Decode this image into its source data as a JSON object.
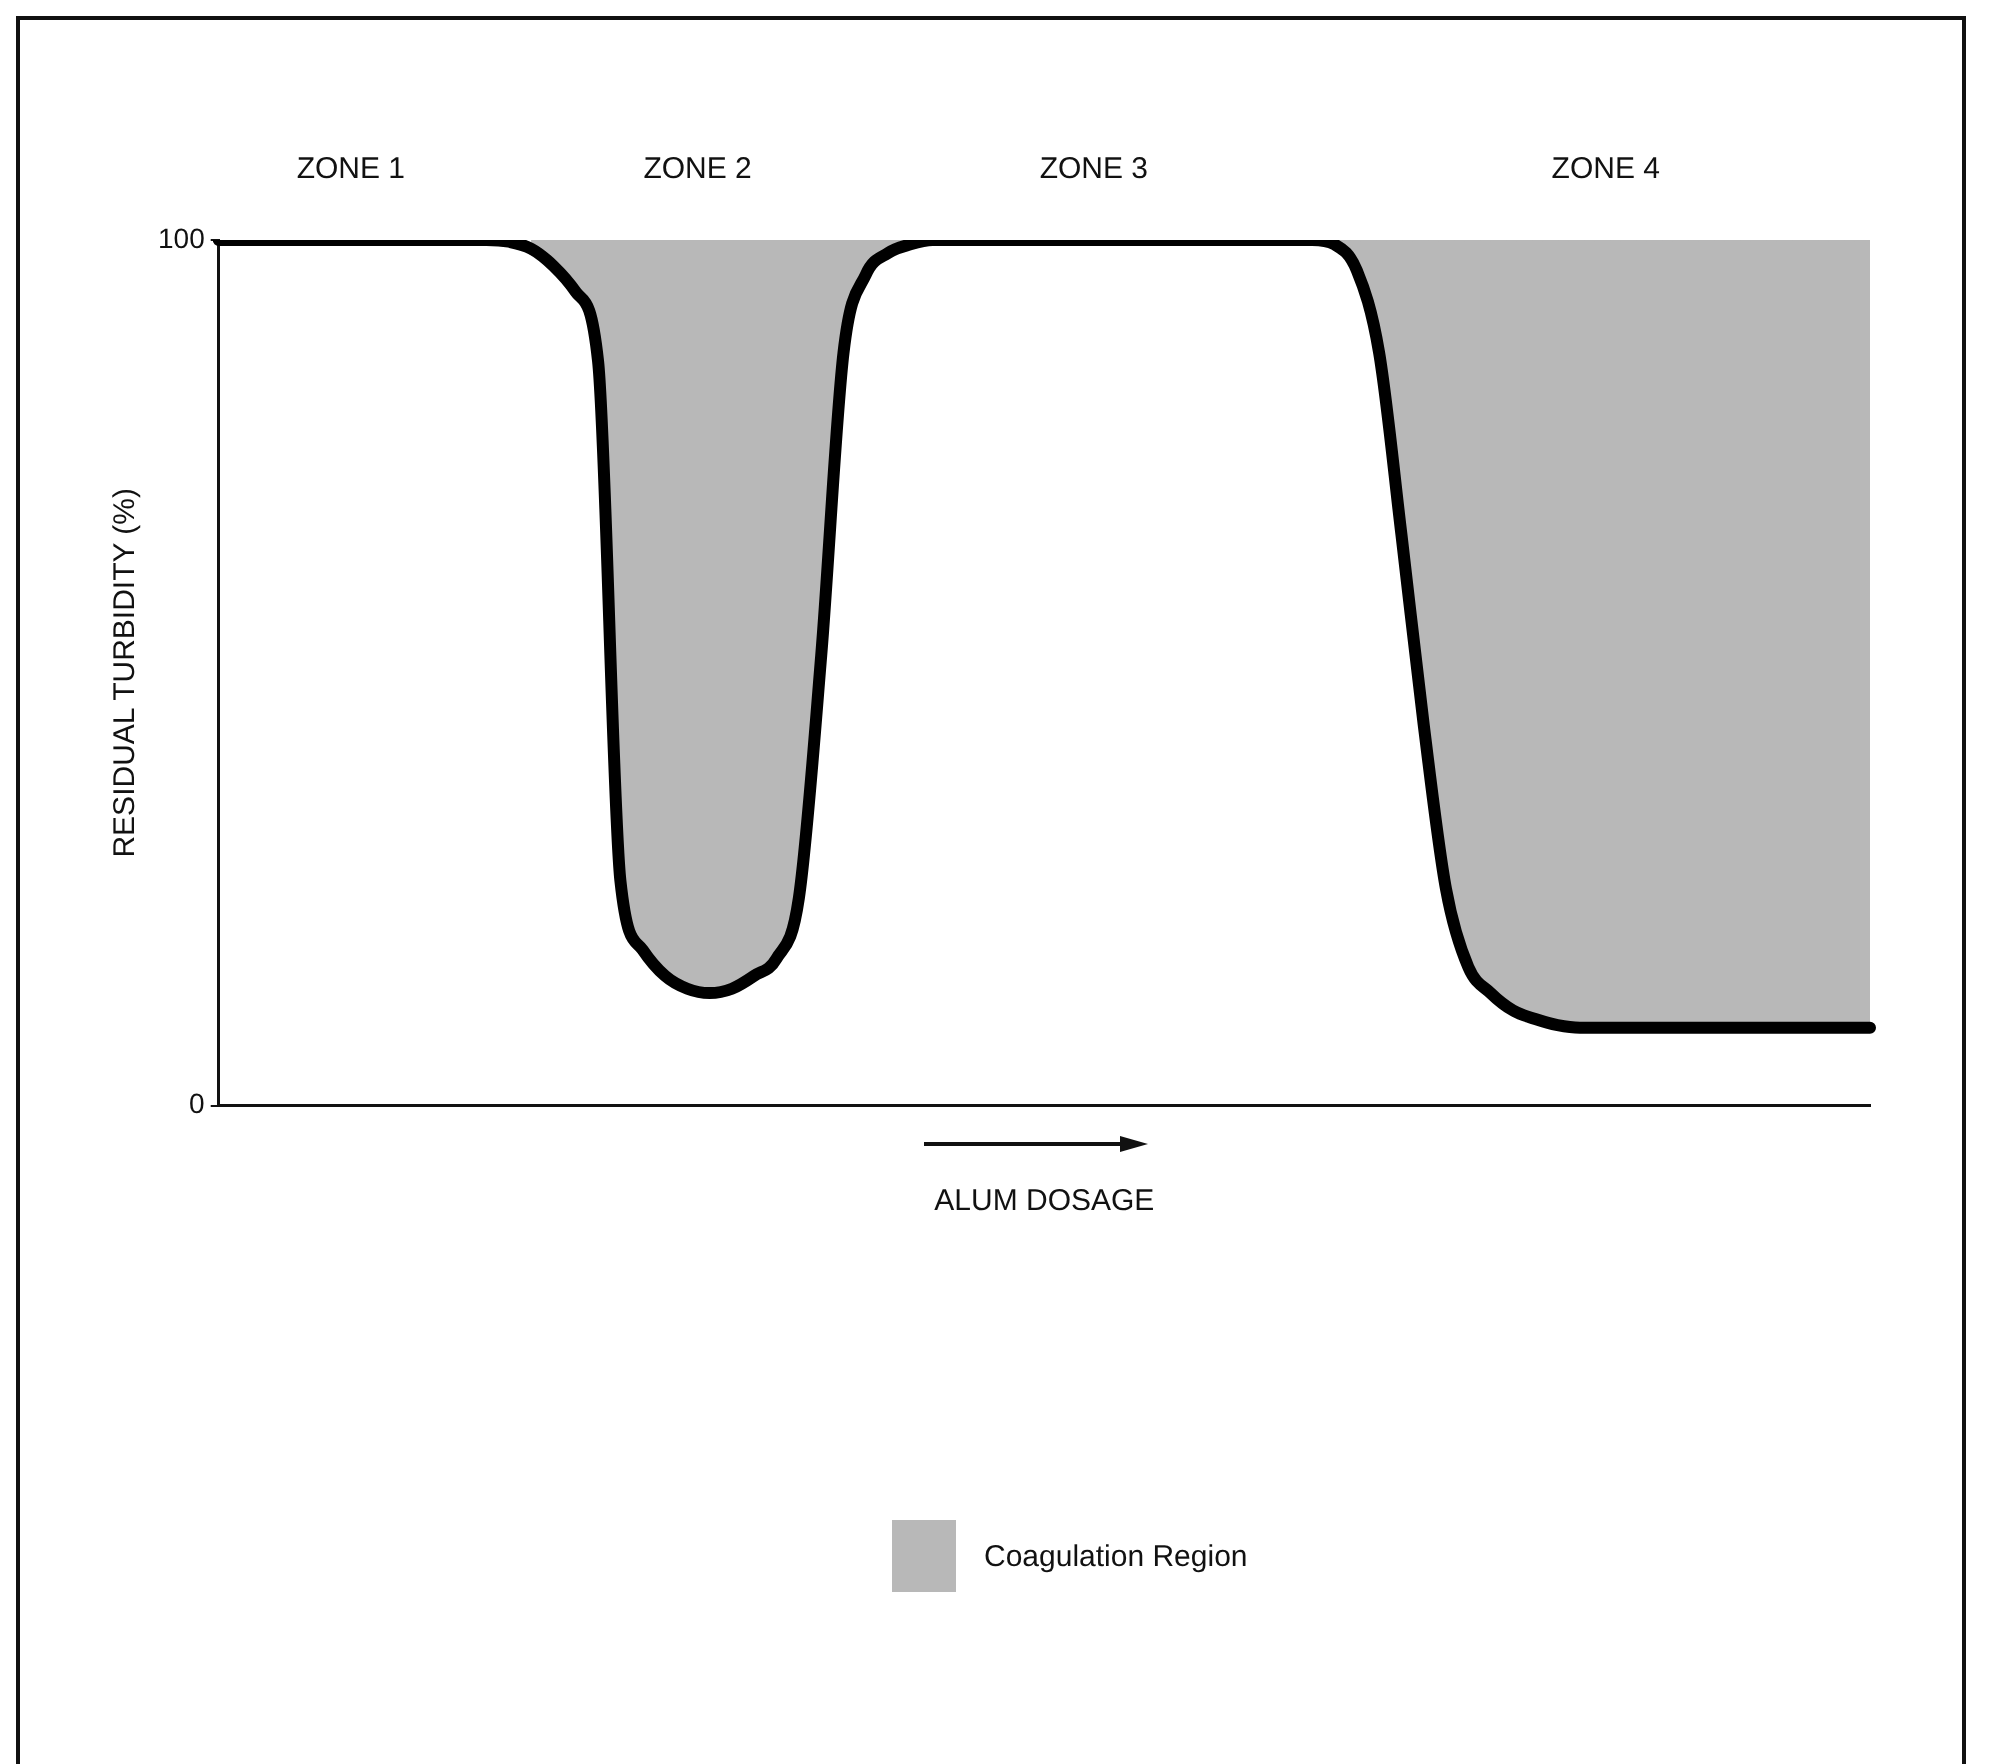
{
  "chart_data": {
    "type": "line",
    "xlabel": "ALUM DOSAGE",
    "ylabel": "RESIDUAL TURBIDITY (%)",
    "annotations": [
      "ZONE 1",
      "ZONE 2",
      "ZONE 3",
      "ZONE 4"
    ],
    "categories": [
      null,
      null,
      null,
      null,
      null,
      null,
      null,
      null,
      null,
      null,
      null,
      null,
      null,
      null,
      null,
      null,
      null,
      null,
      null,
      null,
      null,
      null,
      null,
      null,
      null,
      null,
      null,
      null,
      null,
      null,
      null,
      null,
      null,
      null,
      null,
      null,
      null,
      null,
      null,
      null,
      null,
      null,
      null,
      null,
      null,
      null,
      null,
      null,
      null,
      null,
      null,
      null,
      null,
      null,
      null,
      null,
      null,
      null,
      null,
      null,
      null,
      null,
      null,
      null,
      null,
      null,
      null,
      null,
      null,
      null,
      null,
      null,
      null,
      null,
      null
    ],
    "series": [
      {
        "type": "line",
        "color": "#000000",
        "line_style": "solid",
        "values": [
          100,
          100,
          100,
          100,
          100,
          100,
          100,
          100,
          100,
          100,
          100,
          100,
          100,
          99.8,
          99,
          97,
          94,
          86,
          26,
          18,
          15,
          13.5,
          13,
          13.5,
          15,
          17,
          24,
          52,
          87,
          96,
          98.5,
          99.5,
          100,
          100,
          100,
          100,
          100,
          100,
          100,
          100,
          100,
          100,
          100,
          100,
          100,
          100,
          100,
          100,
          100,
          100,
          99.5,
          96.5,
          87,
          66,
          44,
          25,
          16,
          13,
          11,
          10,
          9.3,
          9,
          9,
          9,
          9,
          9,
          9,
          9,
          9,
          9,
          9,
          9,
          9,
          9,
          9
        ]
      },
      {
        "type": "area",
        "name": "Coagulation Region",
        "color": "#b8b8b8",
        "line_style": "dashed",
        "values": [
          null,
          null,
          null,
          null,
          null,
          null,
          null,
          null,
          null,
          null,
          null,
          null,
          null,
          null,
          100,
          100,
          100,
          100,
          100,
          100,
          100,
          100,
          100,
          100,
          100,
          100,
          100,
          100,
          100,
          100,
          100,
          100,
          null,
          null,
          null,
          null,
          null,
          null,
          null,
          null,
          null,
          null,
          null,
          null,
          null,
          null,
          null,
          null,
          null,
          null,
          100,
          100,
          100,
          100,
          100,
          100,
          100,
          100,
          100,
          100,
          100,
          100,
          100,
          100,
          100,
          100,
          100,
          100,
          100,
          100,
          100,
          100,
          100,
          100,
          100
        ]
      }
    ],
    "ylim": [
      0,
      100
    ],
    "yticks": [
      0,
      100
    ],
    "grid": false,
    "legend": "bottom",
    "marker": "none"
  }
}
